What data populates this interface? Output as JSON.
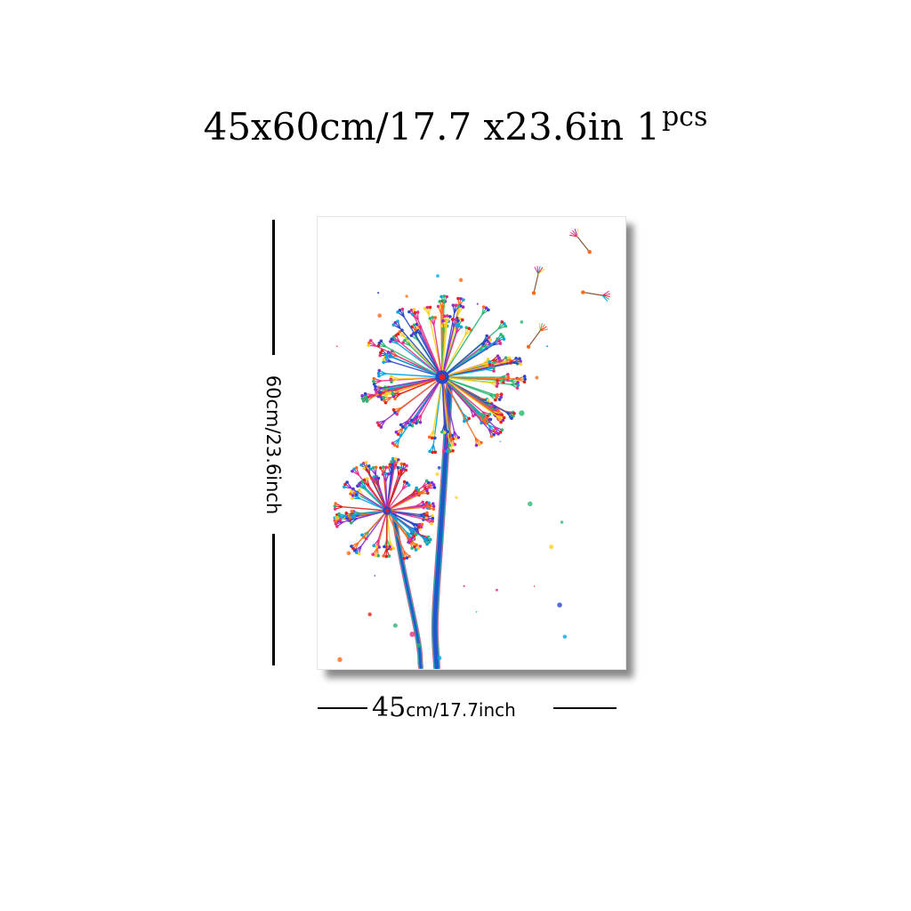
{
  "header": {
    "size_text": "45x60cm/17.7 x23.6in",
    "quantity_number": "1",
    "quantity_unit": "pcs"
  },
  "dimensions": {
    "height_label": "60cm/23.6inch",
    "width_number": "45",
    "width_unit_text": "cm/17.7inch"
  },
  "artwork": {
    "subject": "dandelion-watercolor-icon",
    "colors": [
      "#e8308a",
      "#2a47c9",
      "#ffd21f",
      "#2bb673",
      "#ff6a1a",
      "#8b2fd0",
      "#00a6e0",
      "#e2231a"
    ]
  }
}
